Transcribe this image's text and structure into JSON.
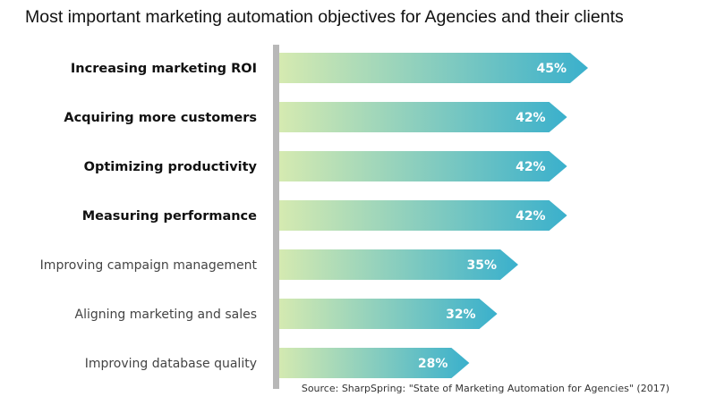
{
  "chart_data": {
    "type": "bar",
    "orientation": "horizontal",
    "title": "Most important marketing automation objectives for Agencies and their clients",
    "categories": [
      "Increasing marketing ROI",
      "Acquiring more customers",
      "Optimizing productivity",
      "Measuring performance",
      "Improving campaign management",
      "Aligning marketing and sales",
      "Improving database quality"
    ],
    "values": [
      45,
      42,
      42,
      42,
      35,
      32,
      28
    ],
    "value_labels": [
      "45%",
      "42%",
      "42%",
      "42%",
      "35%",
      "32%",
      "28%"
    ],
    "bold_categories": [
      true,
      true,
      true,
      true,
      false,
      false,
      false
    ],
    "unit": "%",
    "source": "Source: SharpSpring: \"State of Marketing Automation for Agencies\"  (2017)",
    "colors": {
      "bar_start": "#d8ebb0",
      "bar_end": "#3ab0cc",
      "axis": "#b8b8b8",
      "label_bold": "#111111",
      "label_normal": "#444444",
      "value_text": "#ffffff"
    }
  }
}
